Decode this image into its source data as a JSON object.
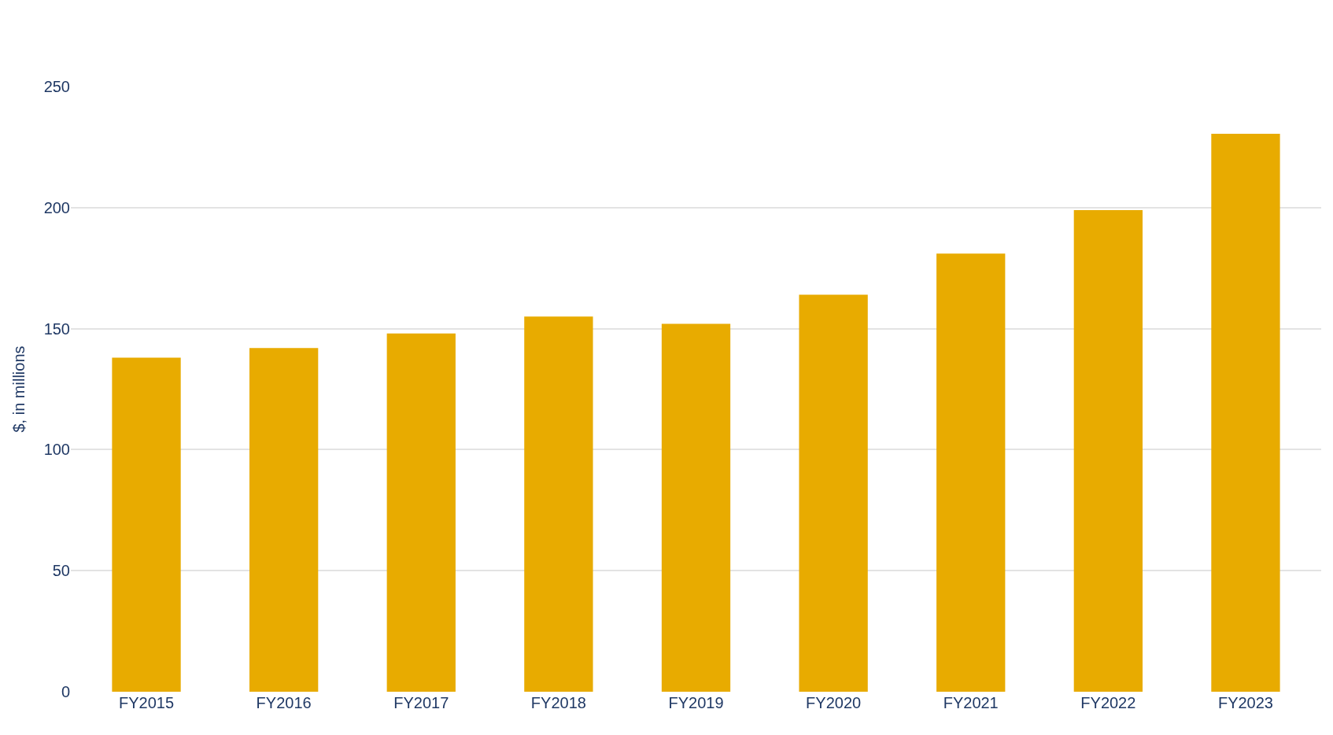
{
  "chart_data": {
    "type": "bar",
    "ylabel": "$, in millions",
    "categories": [
      "FY2015",
      "FY2016",
      "FY2017",
      "FY2018",
      "FY2019",
      "FY2020",
      "FY2021",
      "FY2022",
      "FY2023"
    ],
    "values": [
      138,
      142,
      148,
      155,
      152,
      164,
      181,
      199,
      230.5
    ],
    "color": "#e8ab00",
    "ylim": [
      0,
      250
    ],
    "yticks": [
      0,
      50,
      100,
      150,
      200,
      250
    ],
    "grid": "y",
    "legend": false
  }
}
